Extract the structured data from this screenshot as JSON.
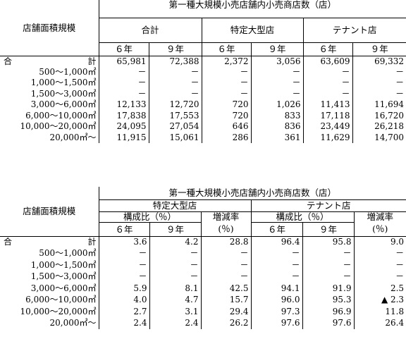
{
  "table1": {
    "title": "第一種大規模小売店舗内小売商店数（店）",
    "rowhead": "店舗面積規模",
    "groups": [
      "合計",
      "特定大型店",
      "テナント店"
    ],
    "years": [
      "６年",
      "９年",
      "６年",
      "９年",
      "６年",
      "９年"
    ],
    "rows": [
      {
        "label_a": "合",
        "label_b": "計",
        "v": [
          "65,981",
          "72,388",
          "2,372",
          "3,056",
          "63,609",
          "69,332"
        ]
      },
      {
        "label": "500～1,000㎡",
        "v": [
          "－",
          "－",
          "－",
          "－",
          "－",
          "－"
        ]
      },
      {
        "label": "1,000～1,500㎡",
        "v": [
          "－",
          "－",
          "－",
          "－",
          "－",
          "－"
        ]
      },
      {
        "label": "1,500～3,000㎡",
        "v": [
          "－",
          "－",
          "－",
          "－",
          "－",
          "－"
        ]
      },
      {
        "label": "3,000～6,000㎡",
        "v": [
          "12,133",
          "12,720",
          "720",
          "1,026",
          "11,413",
          "11,694"
        ]
      },
      {
        "label": "6,000～10,000㎡",
        "v": [
          "17,838",
          "17,553",
          "720",
          "833",
          "17,118",
          "16,720"
        ]
      },
      {
        "label": "10,000～20,000㎡",
        "v": [
          "24,095",
          "27,054",
          "646",
          "836",
          "23,449",
          "26,218"
        ]
      },
      {
        "label": "20,000㎡～",
        "v": [
          "11,915",
          "15,061",
          "286",
          "361",
          "11,629",
          "14,700"
        ]
      }
    ]
  },
  "table2": {
    "title": "第一種大規模小売店舗内小売商店数（店）",
    "rowhead": "店舗面積規模",
    "groups": [
      "特定大型店",
      "テナント店"
    ],
    "sub1": "構成比（％）",
    "sub2_a": "増減率",
    "sub2_b": "(％)",
    "years": [
      "６年",
      "９年",
      "６年",
      "９年"
    ],
    "rows": [
      {
        "label_a": "合",
        "label_b": "計",
        "v": [
          "3.6",
          "4.2",
          "28.8",
          "96.4",
          "95.8",
          "9.0"
        ]
      },
      {
        "label": "500～1,000㎡",
        "v": [
          "－",
          "－",
          "－",
          "－",
          "－",
          "－"
        ]
      },
      {
        "label": "1,000～1,500㎡",
        "v": [
          "－",
          "－",
          "－",
          "－",
          "－",
          "－"
        ]
      },
      {
        "label": "1,500～3,000㎡",
        "v": [
          "－",
          "－",
          "－",
          "－",
          "－",
          "－"
        ]
      },
      {
        "label": "3,000～6,000㎡",
        "v": [
          "5.9",
          "8.1",
          "42.5",
          "94.1",
          "91.9",
          "2.5"
        ]
      },
      {
        "label": "6,000～10,000㎡",
        "v": [
          "4.0",
          "4.7",
          "15.7",
          "96.0",
          "95.3",
          "▲ 2.3"
        ]
      },
      {
        "label": "10,000～20,000㎡",
        "v": [
          "2.7",
          "3.1",
          "29.4",
          "97.3",
          "96.9",
          "11.8"
        ]
      },
      {
        "label": "20,000㎡～",
        "v": [
          "2.4",
          "2.4",
          "26.2",
          "97.6",
          "97.6",
          "26.4"
        ]
      }
    ]
  }
}
